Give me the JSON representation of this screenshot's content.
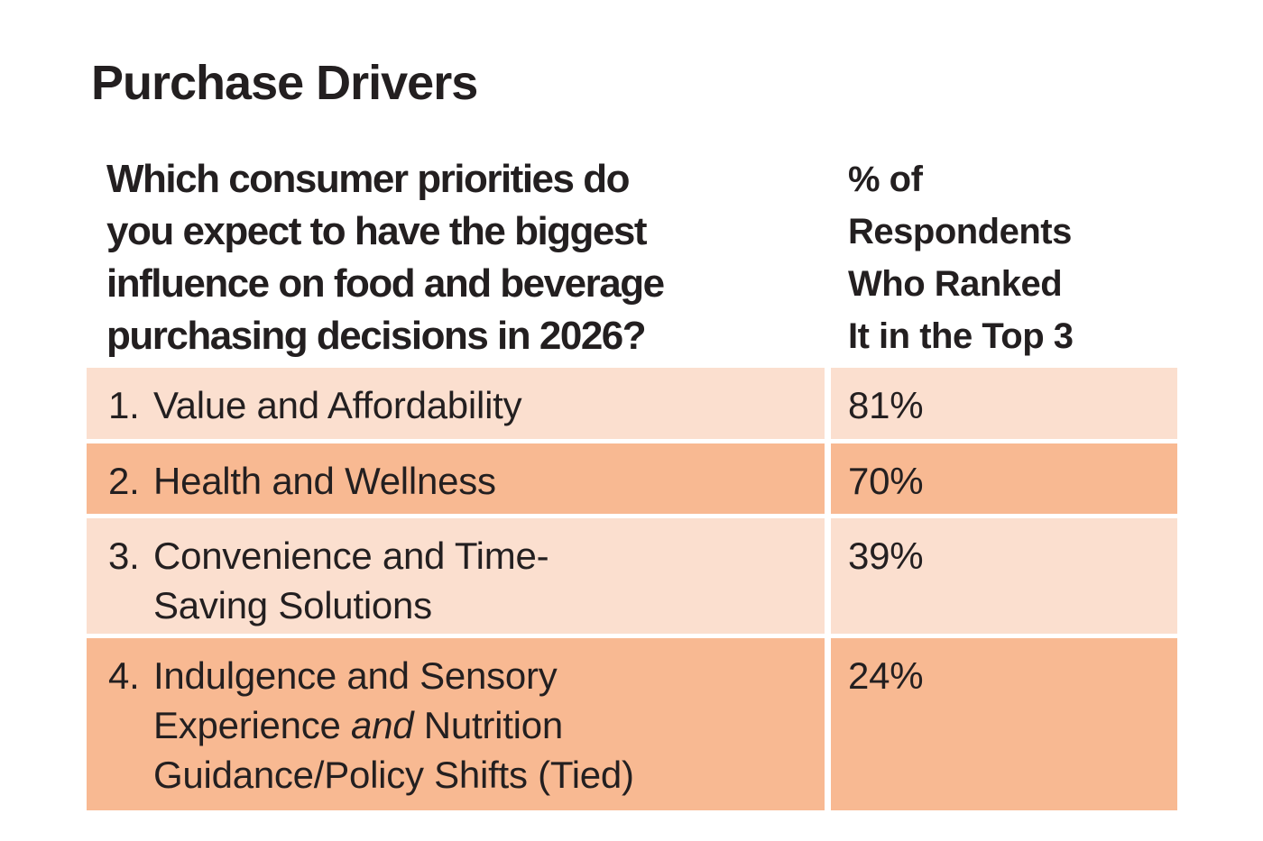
{
  "title": "Purchase Drivers",
  "table": {
    "header": {
      "question": "Which consumer priorities do\nyou expect to have the biggest\ninfluence on food and beverage\npurchasing decisions in 2026?",
      "value_label": "% of\nRespondents\nWho Ranked\nIt in the Top 3"
    },
    "rows": [
      {
        "number": "1.",
        "label": "Value and Affordability",
        "value": "81%",
        "shade": "light"
      },
      {
        "number": "2.",
        "label": "Health and Wellness",
        "value": "70%",
        "shade": "dark"
      },
      {
        "number": "3.",
        "label": "Convenience and Time-\nSaving Solutions",
        "value": "39%",
        "shade": "light"
      },
      {
        "number": "4.",
        "label": "Indulgence and Sensory\nExperience ",
        "italic": "and",
        "label_after": " Nutrition\nGuidance/Policy Shifts (Tied)",
        "value": "24%",
        "shade": "dark"
      }
    ],
    "colors": {
      "row_light": "#fbdfcf",
      "row_dark": "#f8b992",
      "text": "#231f20"
    }
  },
  "chart_data": {
    "type": "table",
    "title": "Purchase Drivers",
    "columns": [
      "Which consumer priorities do you expect to have the biggest influence on food and beverage purchasing decisions in 2026?",
      "% of Respondents Who Ranked It in the Top 3"
    ],
    "categories": [
      "Value and Affordability",
      "Health and Wellness",
      "Convenience and Time-Saving Solutions",
      "Indulgence and Sensory Experience and Nutrition Guidance/Policy Shifts (Tied)"
    ],
    "ranks": [
      1,
      2,
      3,
      4
    ],
    "values": [
      81,
      70,
      39,
      24
    ],
    "value_unit": "%",
    "layout_hints": {
      "row_striping": [
        "light",
        "dark",
        "light",
        "dark"
      ],
      "grid": "off",
      "legend": "none"
    }
  }
}
